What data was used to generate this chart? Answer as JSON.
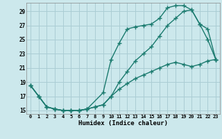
{
  "xlabel": "Humidex (Indice chaleur)",
  "bg_color": "#cce8ec",
  "grid_color": "#aacdd4",
  "line_color": "#1a7a6e",
  "xlim": [
    -0.5,
    23.5
  ],
  "ylim": [
    14.5,
    30.2
  ],
  "xticks": [
    0,
    1,
    2,
    3,
    4,
    5,
    6,
    7,
    8,
    9,
    10,
    11,
    12,
    13,
    14,
    15,
    16,
    17,
    18,
    19,
    20,
    21,
    22,
    23
  ],
  "yticks": [
    15,
    17,
    19,
    21,
    23,
    25,
    27,
    29
  ],
  "line1_x": [
    0,
    1,
    2,
    3,
    4,
    5,
    6,
    7,
    9,
    10,
    11,
    12,
    13,
    14,
    15,
    16,
    17,
    18,
    19,
    20,
    21,
    22,
    23
  ],
  "line1_y": [
    18.5,
    17.0,
    15.5,
    15.2,
    15.0,
    15.0,
    15.0,
    15.2,
    17.5,
    22.2,
    24.5,
    26.5,
    26.8,
    27.0,
    27.2,
    28.0,
    29.5,
    29.8,
    29.8,
    29.2,
    27.2,
    25.0,
    22.2
  ],
  "line2_x": [
    0,
    1,
    2,
    3,
    4,
    5,
    6,
    7,
    8,
    9,
    10,
    11,
    12,
    13,
    14,
    15,
    16,
    17,
    18,
    19,
    20,
    21,
    22,
    23
  ],
  "line2_y": [
    18.5,
    17.0,
    15.5,
    15.2,
    15.0,
    15.0,
    15.0,
    15.2,
    15.5,
    15.8,
    17.0,
    19.0,
    20.5,
    22.0,
    23.0,
    24.0,
    25.5,
    27.0,
    28.0,
    29.0,
    29.2,
    27.2,
    26.5,
    22.2
  ],
  "line3_x": [
    0,
    1,
    2,
    3,
    4,
    5,
    6,
    7,
    8,
    9,
    10,
    11,
    12,
    13,
    14,
    15,
    16,
    17,
    18,
    19,
    20,
    21,
    22,
    23
  ],
  "line3_y": [
    18.5,
    17.0,
    15.5,
    15.2,
    15.0,
    15.0,
    15.0,
    15.2,
    15.5,
    15.8,
    17.0,
    18.0,
    18.8,
    19.5,
    20.0,
    20.5,
    21.0,
    21.5,
    21.8,
    21.5,
    21.2,
    21.5,
    22.0,
    22.2
  ],
  "marker": "+",
  "marker_size": 4.0,
  "linewidth": 1.0
}
